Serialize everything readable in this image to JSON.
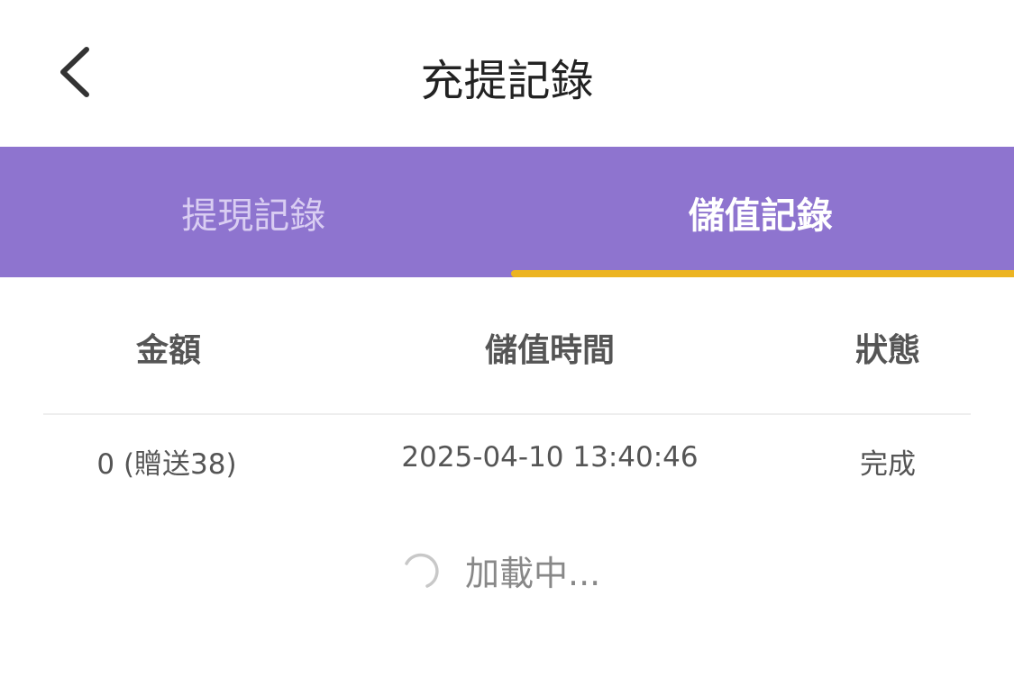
{
  "header": {
    "title": "充提記錄",
    "back_icon": "chevron-left-icon"
  },
  "tabs": [
    {
      "label": "提現記錄",
      "active": false
    },
    {
      "label": "儲值記錄",
      "active": true
    }
  ],
  "colors": {
    "tab_bar": "#8e74cf",
    "indicator": "#ecb422"
  },
  "table": {
    "columns": [
      "金額",
      "儲值時間",
      "狀態"
    ],
    "rows": [
      {
        "amount": "0 (贈送38)",
        "time": "2025-04-10 13:40:46",
        "status": "完成"
      }
    ]
  },
  "loading": {
    "text": "加載中..."
  }
}
